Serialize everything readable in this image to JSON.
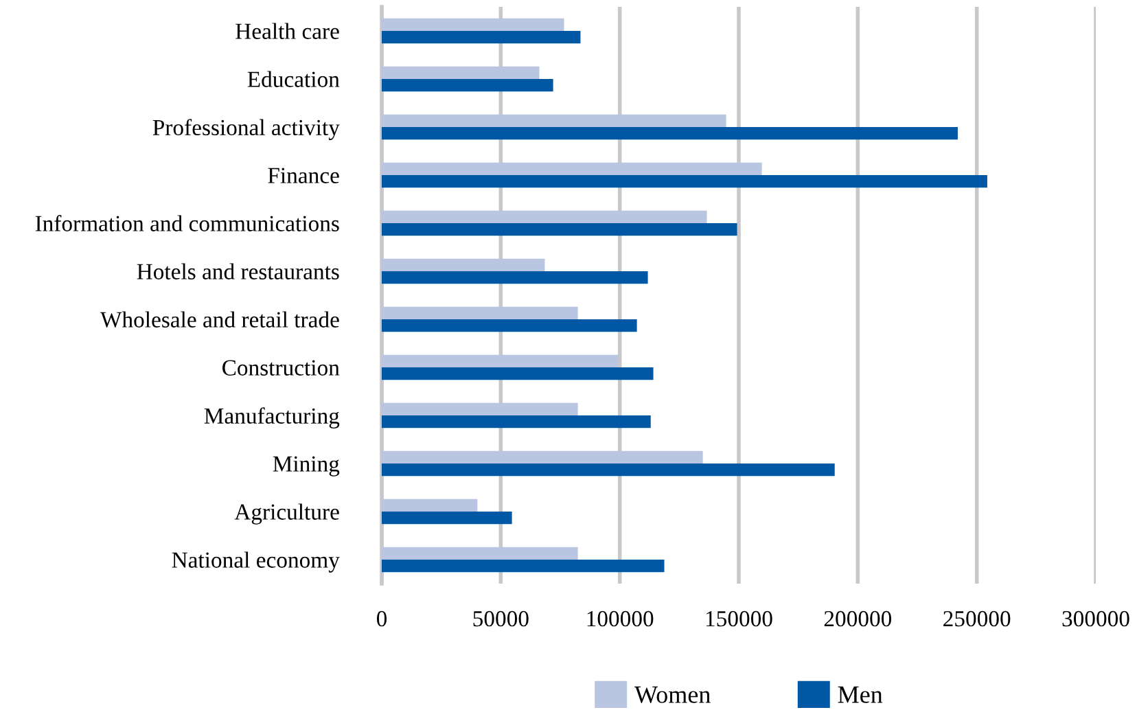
{
  "chart_data": {
    "type": "bar",
    "orientation": "horizontal",
    "categories": [
      "Health care",
      "Education",
      "Professional activity",
      "Finance",
      "Information and communications",
      "Hotels and restaurants",
      "Wholesale and retail trade",
      "Construction",
      "Manufacturing",
      "Mining",
      "Agriculture",
      "National economy"
    ],
    "series": [
      {
        "name": "Women",
        "color": "#bac5e2",
        "values": [
          76600,
          66200,
          144700,
          159700,
          136600,
          68500,
          82400,
          99300,
          82400,
          134900,
          40200,
          82400
        ]
      },
      {
        "name": "Men",
        "color": "#0058a5",
        "values": [
          83500,
          72000,
          242000,
          254400,
          149300,
          111800,
          107200,
          114100,
          113000,
          190300,
          54700,
          118700
        ]
      }
    ],
    "xlim": [
      0,
      300000
    ],
    "xticks": [
      0,
      50000,
      100000,
      150000,
      200000,
      250000,
      300000
    ],
    "grid": "x",
    "legend": "bottom"
  }
}
